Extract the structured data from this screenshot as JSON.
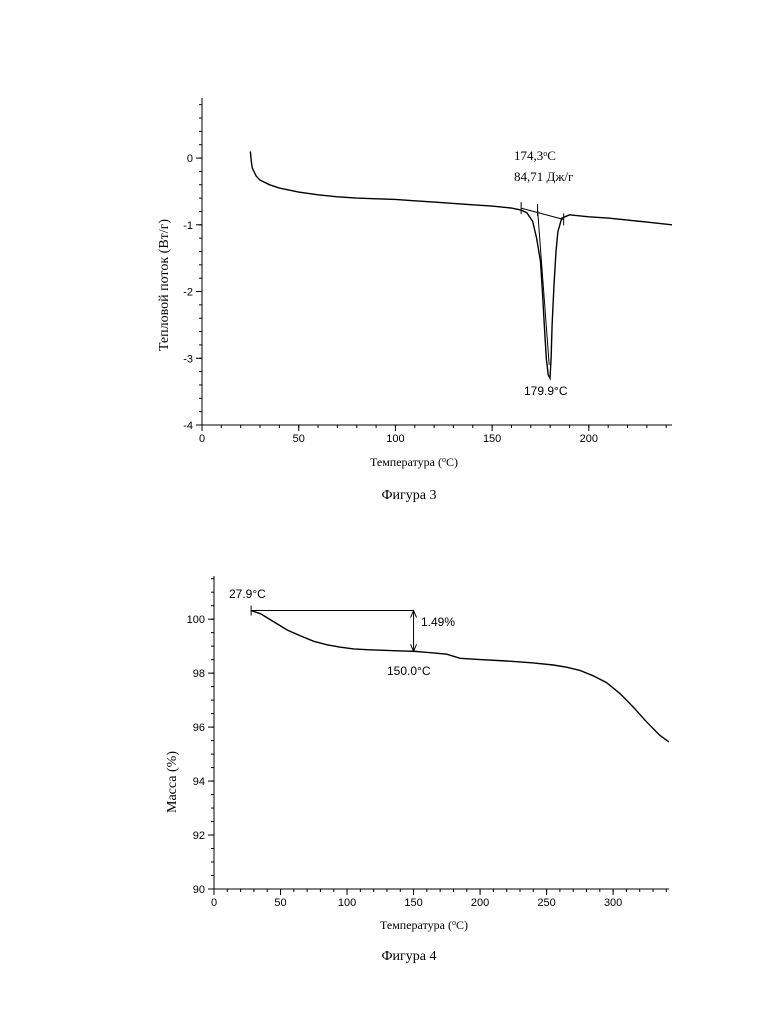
{
  "chart_data": [
    {
      "type": "line",
      "ylabel": "Тепловой поток (Вт/г)",
      "xlabel": "Температура (",
      "xlabel_sup": "о",
      "xlabel_tail": "С)",
      "caption": "Фигура 3",
      "xlim": [
        0,
        243
      ],
      "ylim": [
        -4,
        0.9
      ],
      "xticks": [
        0,
        50,
        100,
        150,
        200
      ],
      "yticks": [
        0,
        -1,
        -2,
        -3,
        -4
      ],
      "series": [
        {
          "x": [
            25,
            25.5,
            26,
            28,
            30,
            35,
            40,
            50,
            60,
            70,
            80,
            90,
            100,
            110,
            120,
            130,
            140,
            150,
            160,
            165,
            168,
            171,
            173,
            175,
            176,
            177,
            178,
            179,
            179.9,
            180.5,
            181,
            182,
            183,
            184,
            186,
            190,
            200,
            210,
            220,
            230,
            243
          ],
          "y": [
            0.1,
            -0.05,
            -0.15,
            -0.27,
            -0.33,
            -0.4,
            -0.45,
            -0.51,
            -0.55,
            -0.58,
            -0.6,
            -0.61,
            -0.62,
            -0.64,
            -0.66,
            -0.68,
            -0.7,
            -0.72,
            -0.75,
            -0.78,
            -0.82,
            -0.95,
            -1.2,
            -1.55,
            -2.0,
            -2.5,
            -3.0,
            -3.25,
            -3.3,
            -3.0,
            -2.5,
            -1.9,
            -1.4,
            -1.1,
            -0.9,
            -0.85,
            -0.88,
            -0.9,
            -0.93,
            -0.96,
            -1.0
          ]
        }
      ],
      "baseline": {
        "x": [
          165,
          187
        ],
        "y": [
          -0.75,
          -0.92
        ]
      },
      "onset_tangent": {
        "x": [
          173.5,
          179.5
        ],
        "y": [
          -0.78,
          -3.1
        ]
      },
      "annotations": {
        "onset": "174,3",
        "onset_sup": "о",
        "onset_tail": "С",
        "enthalpy": "84,71 Дж/г",
        "peak": "179.9°C"
      }
    },
    {
      "type": "line",
      "ylabel": "Масса (%)",
      "xlabel": "Температура (",
      "xlabel_sup": "о",
      "xlabel_tail": "С)",
      "caption": "Фигура 4",
      "xlim": [
        0,
        342
      ],
      "ylim": [
        90,
        101.6
      ],
      "xticks": [
        0,
        50,
        100,
        150,
        200,
        250,
        300
      ],
      "yticks": [
        100,
        98,
        96,
        94,
        92,
        90
      ],
      "series": [
        {
          "x": [
            27.9,
            35,
            45,
            55,
            65,
            75,
            85,
            95,
            105,
            115,
            125,
            135,
            150,
            165,
            175,
            185,
            200,
            220,
            240,
            255,
            265,
            275,
            285,
            295,
            305,
            315,
            325,
            335,
            342
          ],
          "y": [
            100.32,
            100.2,
            99.9,
            99.6,
            99.38,
            99.18,
            99.05,
            98.96,
            98.9,
            98.87,
            98.85,
            98.83,
            98.81,
            98.75,
            98.7,
            98.55,
            98.5,
            98.45,
            98.38,
            98.3,
            98.22,
            98.1,
            97.9,
            97.65,
            97.25,
            96.75,
            96.2,
            95.7,
            95.45
          ]
        }
      ],
      "step": {
        "start_x": 27.9,
        "end_x": 150.0,
        "top_y": 100.32,
        "bottom_y": 98.81
      },
      "annotations": {
        "start": "27.9°C",
        "end": "150.0°C",
        "loss": "1.49%"
      }
    }
  ]
}
